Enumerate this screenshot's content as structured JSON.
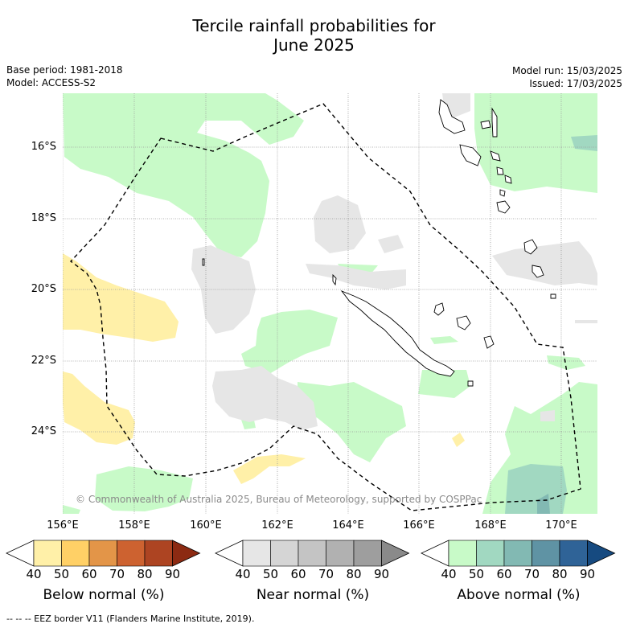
{
  "title_line1": "Tercile rainfall probabilities for",
  "title_line2": "June 2025",
  "meta": {
    "base_period": "Base period: 1981-2018",
    "model": "Model: ACCESS-S2",
    "model_run": "Model run: 15/03/2025",
    "issued": "Issued: 17/03/2025"
  },
  "map": {
    "lat_ticks": [
      "16°S",
      "18°S",
      "20°S",
      "22°S",
      "24°S"
    ],
    "lon_ticks": [
      "156°E",
      "158°E",
      "160°E",
      "162°E",
      "164°E",
      "166°E",
      "168°E",
      "170°E"
    ],
    "copyright": "© Commonwealth of Australia 2025, Bureau of Meteorology, supported by COSPPac"
  },
  "colorbars": [
    {
      "label": "Below normal (%)",
      "ticks": [
        "40",
        "50",
        "60",
        "70",
        "80",
        "90"
      ],
      "colors": [
        "#fff0a8",
        "#ffd066",
        "#e39548",
        "#cd6230",
        "#ad4422",
        "#8c2a12"
      ]
    },
    {
      "label": "Near normal (%)",
      "ticks": [
        "40",
        "50",
        "60",
        "70",
        "80",
        "90"
      ],
      "colors": [
        "#e6e6e6",
        "#d5d5d5",
        "#c4c4c4",
        "#b1b1b1",
        "#9e9e9e",
        "#8a8a8a"
      ]
    },
    {
      "label": "Above normal (%)",
      "ticks": [
        "40",
        "50",
        "60",
        "70",
        "80",
        "90"
      ],
      "colors": [
        "#c8fac8",
        "#a1d8c1",
        "#82b9b3",
        "#5f93a4",
        "#2f6397",
        "#164a80"
      ]
    }
  ],
  "footnote": "-- -- -- EEZ border V11 (Flanders Marine Institute, 2019)."
}
